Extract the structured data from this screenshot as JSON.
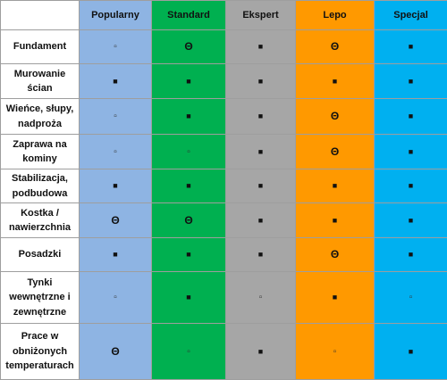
{
  "columns": [
    {
      "label": "",
      "color": "#ffffff"
    },
    {
      "label": "Popularny",
      "color": "#8eb4e3"
    },
    {
      "label": "Standard",
      "color": "#00b050"
    },
    {
      "label": "Ekspert",
      "color": "#a6a6a6"
    },
    {
      "label": "Lepo",
      "color": "#ff9900"
    },
    {
      "label": "Specjal",
      "color": "#00b0f0"
    }
  ],
  "rows": [
    {
      "label": "Fundament",
      "cells": [
        "▫",
        "Θ",
        "■",
        "Θ",
        "■"
      ],
      "kinds": [
        "empty",
        "theta",
        "filled",
        "theta",
        "filled"
      ]
    },
    {
      "label": "Murowanie ścian",
      "cells": [
        "■",
        "■",
        "■",
        "■",
        "■"
      ],
      "kinds": [
        "filled",
        "filled",
        "filled",
        "filled",
        "filled"
      ]
    },
    {
      "label": "Wieńce, słupy, nadproża",
      "cells": [
        "▫",
        "■",
        "■",
        "Θ",
        "■"
      ],
      "kinds": [
        "empty",
        "filled",
        "filled",
        "theta",
        "filled"
      ]
    },
    {
      "label": "Zaprawa na kominy",
      "cells": [
        "▫",
        "▫",
        "■",
        "Θ",
        "■"
      ],
      "kinds": [
        "empty",
        "empty",
        "filled",
        "theta",
        "filled"
      ]
    },
    {
      "label": "Stabilizacja, podbudowa",
      "cells": [
        "■",
        "■",
        "■",
        "■",
        "■"
      ],
      "kinds": [
        "filled",
        "filled",
        "filled",
        "filled",
        "filled"
      ]
    },
    {
      "label": "Kostka / nawierzchnia",
      "cells": [
        "Θ",
        "Θ",
        "■",
        "■",
        "■"
      ],
      "kinds": [
        "theta",
        "theta",
        "filled",
        "filled",
        "filled"
      ]
    },
    {
      "label": "Posadzki",
      "cells": [
        "■",
        "■",
        "■",
        "Θ",
        "■"
      ],
      "kinds": [
        "filled",
        "filled",
        "filled",
        "theta",
        "filled"
      ]
    },
    {
      "label": "Tynki wewnętrzne i zewnętrzne",
      "cells": [
        "▫",
        "■",
        "▫",
        "■",
        "▫"
      ],
      "kinds": [
        "empty",
        "filled",
        "empty",
        "filled",
        "empty"
      ]
    },
    {
      "label": "Prace w obniżonych temperaturach",
      "cells": [
        "Θ",
        "▫",
        "■",
        "▫",
        "■"
      ],
      "kinds": [
        "theta",
        "empty",
        "filled",
        "empty",
        "filled"
      ]
    }
  ]
}
